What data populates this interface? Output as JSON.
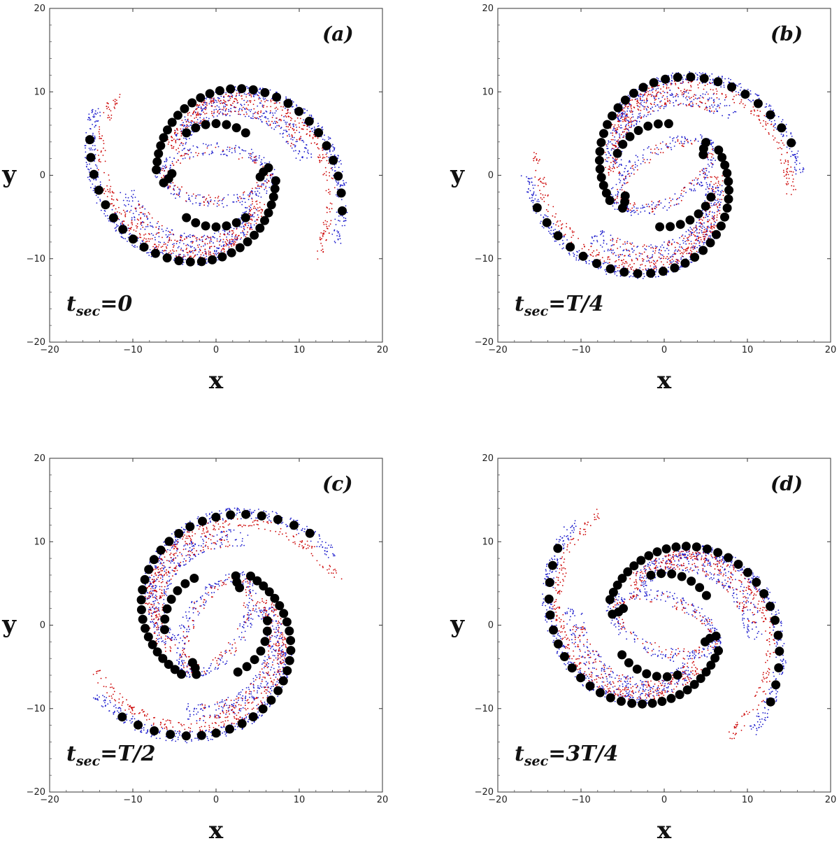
{
  "chart_data": [
    {
      "type": "scatter",
      "panel_label": "(a)",
      "time_label": {
        "var": "t",
        "sub": "sec",
        "rhs": "=0"
      },
      "xlabel": "x",
      "ylabel": "y",
      "xlim": [
        -20,
        20
      ],
      "ylim": [
        -20,
        20
      ],
      "xticks": [
        -20,
        -10,
        0,
        10,
        20
      ],
      "yticks": [
        -20,
        -10,
        0,
        10,
        20
      ],
      "rotation_deg": 0,
      "series": [
        {
          "color": "#000000",
          "marker": "large-dot",
          "description_values": "spiral arms and ring of large black markers"
        },
        {
          "color": "#cc0000",
          "marker": "small-dot"
        },
        {
          "color": "#1a1acc",
          "marker": "small-dot"
        }
      ]
    },
    {
      "type": "scatter",
      "panel_label": "(b)",
      "time_label": {
        "var": "t",
        "sub": "sec",
        "rhs": "=T/4"
      },
      "xlabel": "x",
      "ylabel": "y",
      "xlim": [
        -20,
        20
      ],
      "ylim": [
        -20,
        20
      ],
      "xticks": [
        -20,
        -10,
        0,
        10,
        20
      ],
      "yticks": [
        -20,
        -10,
        0,
        10,
        20
      ],
      "rotation_deg": 30,
      "series": [
        {
          "color": "#000000",
          "marker": "large-dot"
        },
        {
          "color": "#cc0000",
          "marker": "small-dot"
        },
        {
          "color": "#1a1acc",
          "marker": "small-dot"
        }
      ]
    },
    {
      "type": "scatter",
      "panel_label": "(c)",
      "time_label": {
        "var": "t",
        "sub": "sec",
        "rhs": "=T/2"
      },
      "xlabel": "x",
      "ylabel": "y",
      "xlim": [
        -20,
        20
      ],
      "ylim": [
        -20,
        20
      ],
      "xticks": [
        -20,
        -10,
        0,
        10,
        20
      ],
      "yticks": [
        -20,
        -10,
        0,
        10,
        20
      ],
      "rotation_deg": 60,
      "series": [
        {
          "color": "#000000",
          "marker": "large-dot"
        },
        {
          "color": "#cc0000",
          "marker": "small-dot"
        },
        {
          "color": "#1a1acc",
          "marker": "small-dot"
        }
      ]
    },
    {
      "type": "scatter",
      "panel_label": "(d)",
      "time_label": {
        "var": "t",
        "sub": "sec",
        "rhs": "=3T/4"
      },
      "xlabel": "x",
      "ylabel": "y",
      "xlim": [
        -20,
        20
      ],
      "ylim": [
        -20,
        20
      ],
      "xticks": [
        -20,
        -10,
        0,
        10,
        20
      ],
      "yticks": [
        -20,
        -10,
        0,
        10,
        20
      ],
      "rotation_deg": -20,
      "series": [
        {
          "color": "#000000",
          "marker": "large-dot"
        },
        {
          "color": "#cc0000",
          "marker": "small-dot"
        },
        {
          "color": "#1a1acc",
          "marker": "small-dot"
        }
      ]
    }
  ]
}
